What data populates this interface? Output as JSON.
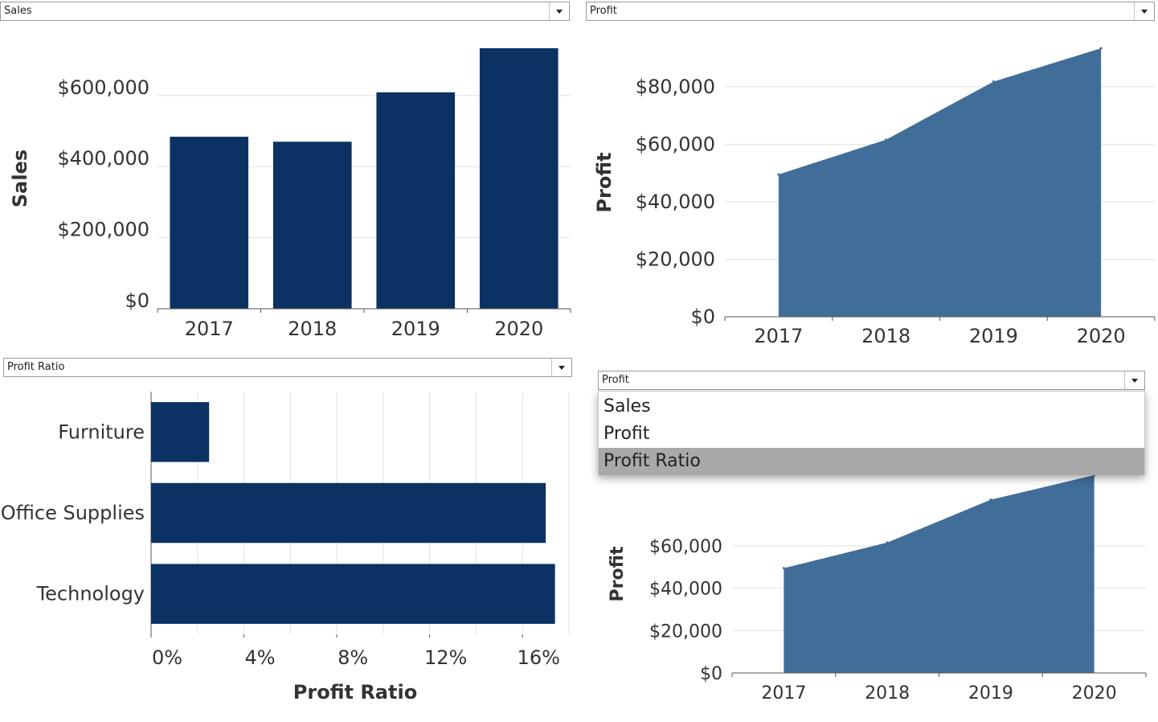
{
  "dropdowns": {
    "top_left": "Sales",
    "top_right": "Profit",
    "bottom_left": "Profit Ratio",
    "bottom_right": "Profit"
  },
  "menu": {
    "options": [
      "Sales",
      "Profit",
      "Profit Ratio"
    ],
    "highlighted": "Profit Ratio"
  },
  "colors": {
    "bar": "#0b3263",
    "area": "#416e99",
    "grid": "#e2e2e2",
    "axis": "#555555"
  },
  "chart_data": [
    {
      "type": "bar",
      "categories": [
        "2017",
        "2018",
        "2019",
        "2020"
      ],
      "values": [
        484000,
        470000,
        609000,
        733000
      ],
      "ylabel": "Sales",
      "ylim": [
        0,
        733000
      ],
      "yticks": [
        0,
        200000,
        400000,
        600000
      ],
      "ytick_labels": [
        "$0",
        "$200,000",
        "$400,000",
        "$600,000"
      ],
      "grid": true
    },
    {
      "type": "area",
      "x": [
        "2017",
        "2018",
        "2019",
        "2020"
      ],
      "values": [
        49500,
        61600,
        81800,
        93400
      ],
      "ylabel": "Profit",
      "ylim": [
        0,
        93400
      ],
      "yticks": [
        0,
        20000,
        40000,
        60000,
        80000
      ],
      "ytick_labels": [
        "$0",
        "$20,000",
        "$40,000",
        "$60,000",
        "$80,000"
      ],
      "grid": true
    },
    {
      "type": "bar",
      "orientation": "horizontal",
      "categories": [
        "Furniture",
        "Office Supplies",
        "Technology"
      ],
      "values": [
        0.025,
        0.17,
        0.174
      ],
      "xlabel": "Profit Ratio",
      "xlim": [
        0,
        0.18
      ],
      "xticks": [
        0,
        0.04,
        0.08,
        0.12,
        0.16
      ],
      "xtick_labels": [
        "0%",
        "4%",
        "8%",
        "12%",
        "16%"
      ],
      "grid": true
    },
    {
      "type": "area",
      "x": [
        "2017",
        "2018",
        "2019",
        "2020"
      ],
      "values": [
        49500,
        61600,
        81800,
        93400
      ],
      "ylabel": "Profit",
      "ylim": [
        0,
        93400
      ],
      "yticks": [
        0,
        20000,
        40000,
        60000
      ],
      "ytick_labels": [
        "$0",
        "$20,000",
        "$40,000",
        "$60,000"
      ],
      "grid": true
    }
  ]
}
